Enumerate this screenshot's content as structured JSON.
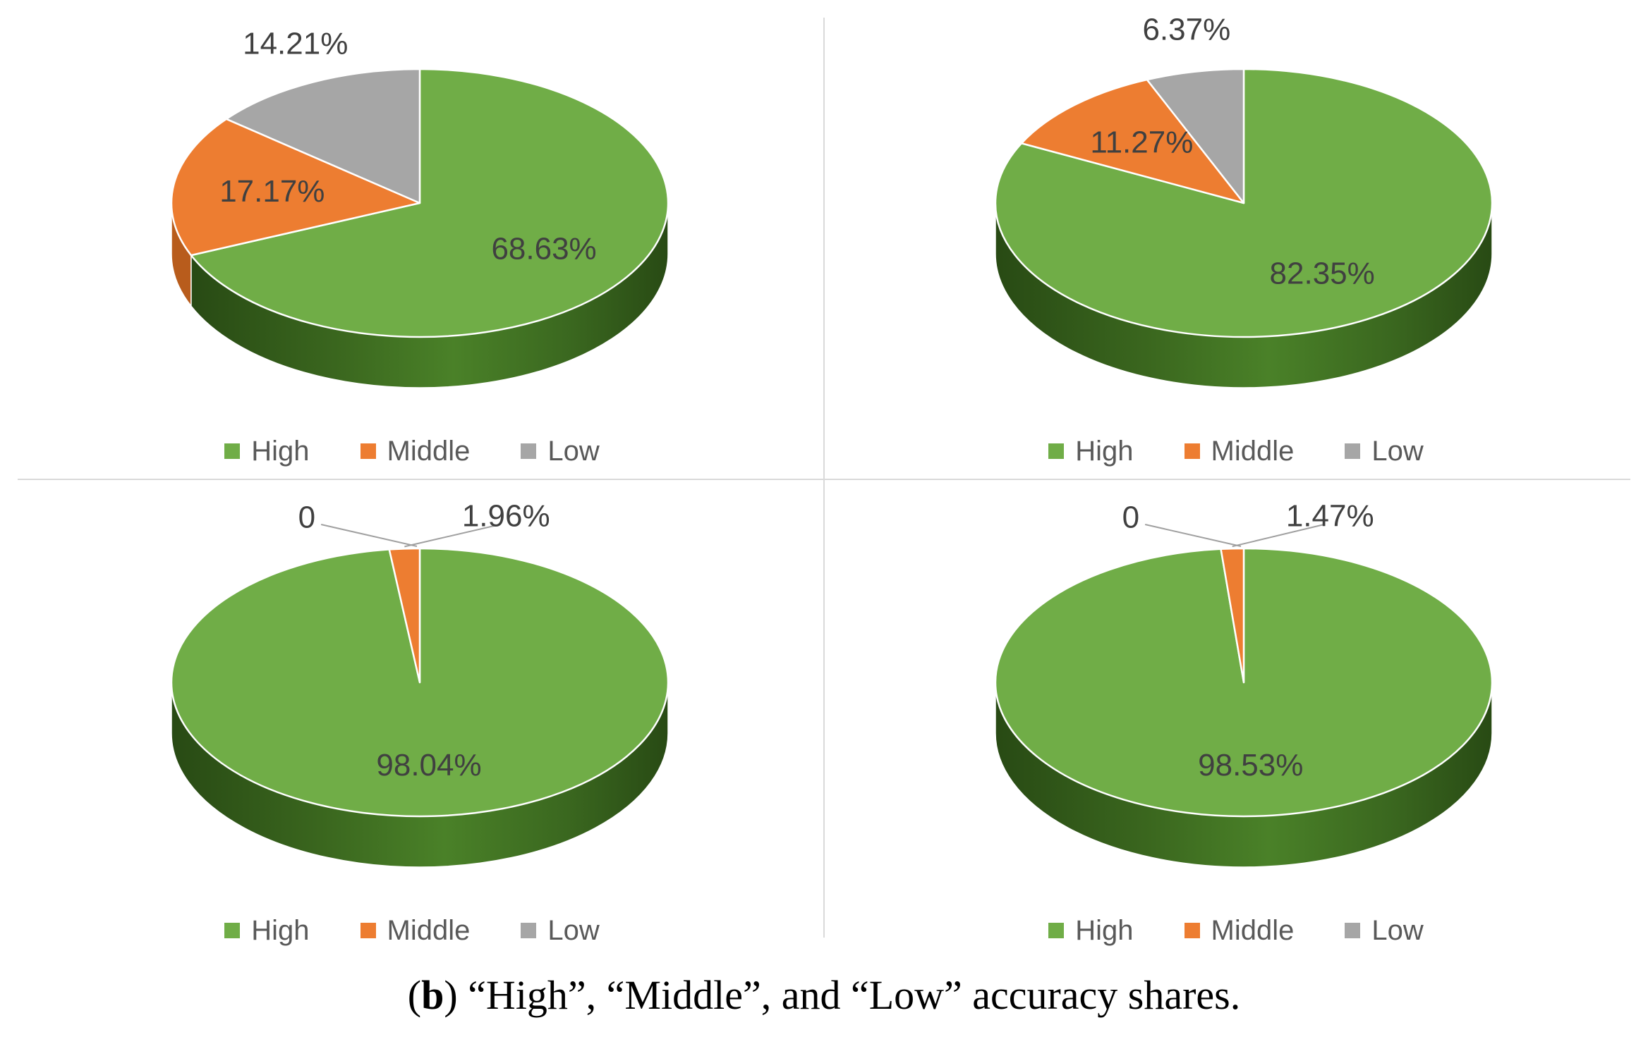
{
  "figure": {
    "caption": {
      "open": "(",
      "marker": "b",
      "close": ")",
      "text": " “High”, “Middle”, and “Low” accuracy shares."
    }
  },
  "legend": {
    "position": "bottom",
    "items": [
      {
        "label": "High",
        "color": "#70AD47"
      },
      {
        "label": "Middle",
        "color": "#ED7D31"
      },
      {
        "label": "Low",
        "color": "#A6A6A6"
      }
    ]
  },
  "colors": {
    "high": "#70AD47",
    "middle": "#ED7D31",
    "low": "#A6A6A6",
    "label_text": "#404040",
    "legend_text": "#595959"
  },
  "chart_data": [
    {
      "type": "pie",
      "style": "3d",
      "position": "top-left",
      "categories": [
        "High",
        "Middle",
        "Low"
      ],
      "values": [
        68.63,
        17.17,
        14.21
      ],
      "data_labels": [
        "68.63%",
        "17.17%",
        "14.21%"
      ],
      "label_layout": [
        "in",
        "in",
        "out"
      ],
      "colors": [
        "#70AD47",
        "#ED7D31",
        "#A6A6A6"
      ],
      "legend_position": "bottom"
    },
    {
      "type": "pie",
      "style": "3d",
      "position": "top-right",
      "categories": [
        "High",
        "Middle",
        "Low"
      ],
      "values": [
        82.35,
        11.27,
        6.37
      ],
      "data_labels": [
        "82.35%",
        "11.27%",
        "6.37%"
      ],
      "label_layout": [
        "in",
        "in",
        "out"
      ],
      "colors": [
        "#70AD47",
        "#ED7D31",
        "#A6A6A6"
      ],
      "legend_position": "bottom"
    },
    {
      "type": "pie",
      "style": "3d",
      "position": "bottom-left",
      "categories": [
        "High",
        "Middle",
        "Low"
      ],
      "values": [
        98.04,
        1.96,
        0
      ],
      "data_labels": [
        "98.04%",
        "1.96%",
        "0"
      ],
      "label_layout": [
        "in",
        "leader",
        "leader-zero"
      ],
      "colors": [
        "#70AD47",
        "#ED7D31",
        "#A6A6A6"
      ],
      "legend_position": "bottom"
    },
    {
      "type": "pie",
      "style": "3d",
      "position": "bottom-right",
      "categories": [
        "High",
        "Middle",
        "Low"
      ],
      "values": [
        98.53,
        1.47,
        0
      ],
      "data_labels": [
        "98.53%",
        "1.47%",
        "0"
      ],
      "label_layout": [
        "in",
        "leader",
        "leader-zero"
      ],
      "colors": [
        "#70AD47",
        "#ED7D31",
        "#A6A6A6"
      ],
      "legend_position": "bottom"
    }
  ]
}
